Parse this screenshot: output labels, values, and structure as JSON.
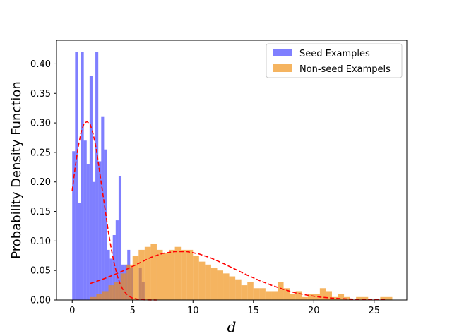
{
  "chart_data": {
    "type": "histogram",
    "title": "",
    "xlabel": "d",
    "ylabel": "Probability Density Function",
    "xlim": [
      -1.3,
      27.7
    ],
    "ylim": [
      0,
      0.44
    ],
    "xticks": [
      0,
      5,
      10,
      15,
      20,
      25
    ],
    "yticks": [
      0.0,
      0.05,
      0.1,
      0.15,
      0.2,
      0.25,
      0.3,
      0.35,
      0.4
    ],
    "ytick_labels": [
      "0.00",
      "0.05",
      "0.10",
      "0.15",
      "0.20",
      "0.25",
      "0.30",
      "0.35",
      "0.40"
    ],
    "legend": {
      "position": "upper right",
      "entries": [
        "Seed Examples",
        "Non-seed Exampels"
      ]
    },
    "colors": {
      "seed": "#0000ff",
      "seed_alpha": 0.5,
      "nonseed": "#f08c0a",
      "nonseed_alpha": 0.65,
      "fit_line": "#ff0000"
    },
    "series": [
      {
        "name": "Seed Examples",
        "type": "bar",
        "bin_edges": [
          0.0,
          0.24,
          0.48,
          0.72,
          0.96,
          1.2,
          1.44,
          1.68,
          1.92,
          2.16,
          2.4,
          2.64,
          2.88,
          3.12,
          3.36,
          3.6,
          3.84,
          4.08,
          4.32,
          4.56,
          4.8,
          5.04,
          5.28,
          5.52,
          5.76,
          6.0,
          6.24,
          6.48,
          6.72,
          6.96,
          7.2
        ],
        "values": [
          0.252,
          0.42,
          0.165,
          0.42,
          0.27,
          0.23,
          0.38,
          0.2,
          0.42,
          0.235,
          0.31,
          0.255,
          0.085,
          0.07,
          0.11,
          0.135,
          0.21,
          0.06,
          0.06,
          0.085,
          0.055,
          0.0,
          0.0,
          0.055,
          0.03,
          0.0,
          0.0,
          0.0,
          0.0,
          0.0
        ]
      },
      {
        "name": "Non-seed Exampels",
        "type": "bar",
        "bin_edges": [
          1.5,
          2.0,
          2.5,
          3.0,
          3.5,
          4.0,
          4.5,
          5.0,
          5.5,
          6.0,
          6.5,
          7.0,
          7.5,
          8.0,
          8.5,
          9.0,
          9.5,
          10.0,
          10.5,
          11.0,
          11.5,
          12.0,
          12.5,
          13.0,
          13.5,
          14.0,
          14.5,
          15.0,
          15.5,
          16.0,
          16.5,
          17.0,
          17.5,
          18.0,
          18.5,
          19.0,
          19.5,
          20.0,
          20.5,
          21.0,
          21.5,
          22.0,
          22.5,
          23.0,
          23.5,
          24.0,
          24.5,
          25.0,
          25.5,
          26.0,
          26.5
        ],
        "values": [
          0.005,
          0.01,
          0.015,
          0.025,
          0.03,
          0.045,
          0.06,
          0.075,
          0.085,
          0.09,
          0.095,
          0.085,
          0.08,
          0.085,
          0.09,
          0.085,
          0.085,
          0.075,
          0.065,
          0.06,
          0.055,
          0.05,
          0.045,
          0.04,
          0.035,
          0.025,
          0.03,
          0.02,
          0.02,
          0.015,
          0.015,
          0.03,
          0.02,
          0.01,
          0.015,
          0.005,
          0.01,
          0.01,
          0.02,
          0.015,
          0.005,
          0.01,
          0.005,
          0.0,
          0.005,
          0.005,
          0.0,
          0.0,
          0.005,
          0.005
        ]
      },
      {
        "name": "",
        "type": "line",
        "style": "dashed",
        "x": [
          0.0,
          0.25,
          0.5,
          0.75,
          1.0,
          1.25,
          1.5,
          1.75,
          2.0,
          2.25,
          2.5,
          2.75,
          3.0,
          3.25,
          3.5,
          3.75,
          4.0,
          4.25,
          4.5,
          4.75,
          5.0,
          5.25,
          5.5,
          5.75,
          6.0,
          6.5,
          7.0
        ],
        "y": [
          0.185,
          0.225,
          0.26,
          0.285,
          0.3,
          0.302,
          0.297,
          0.28,
          0.255,
          0.22,
          0.185,
          0.15,
          0.115,
          0.085,
          0.06,
          0.04,
          0.025,
          0.016,
          0.01,
          0.006,
          0.003,
          0.002,
          0.001,
          0.0005,
          0.0002,
          0.0001,
          0.0
        ]
      },
      {
        "name": "",
        "type": "line",
        "style": "dashed",
        "x": [
          1.5,
          2.5,
          3.5,
          4.5,
          5.5,
          6.5,
          7.5,
          8.5,
          9.5,
          10.5,
          11.5,
          12.5,
          13.5,
          14.5,
          15.5,
          16.5,
          17.5,
          18.5,
          19.5,
          20.5,
          21.5,
          22.5,
          23.5,
          24.5,
          25.5,
          26.0
        ],
        "y": [
          0.028,
          0.035,
          0.043,
          0.052,
          0.062,
          0.072,
          0.079,
          0.082,
          0.082,
          0.078,
          0.071,
          0.062,
          0.052,
          0.042,
          0.033,
          0.025,
          0.018,
          0.012,
          0.008,
          0.005,
          0.0032,
          0.002,
          0.0012,
          0.0007,
          0.0004,
          0.0003
        ]
      }
    ]
  }
}
